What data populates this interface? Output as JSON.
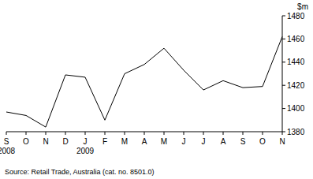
{
  "chart_data": {
    "type": "line",
    "y_label": "$m",
    "annotations": [
      "Source: Retail Trade, Australia (cat. no. 8501.0)"
    ],
    "categories": [
      "S\n2008",
      "O",
      "N",
      "D",
      "J\n2009",
      "F",
      "M",
      "A",
      "M",
      "J",
      "J",
      "A",
      "S",
      "O",
      "N"
    ],
    "values": [
      1397,
      1394,
      1384,
      1429,
      1427,
      1390,
      1430,
      1438,
      1452,
      1433,
      1416,
      1424,
      1418,
      1419,
      1462
    ],
    "color": "#000000",
    "ylim": [
      1380,
      1480
    ],
    "yticks": [
      1380,
      1400,
      1420,
      1440,
      1460,
      1480
    ],
    "grid": false
  }
}
